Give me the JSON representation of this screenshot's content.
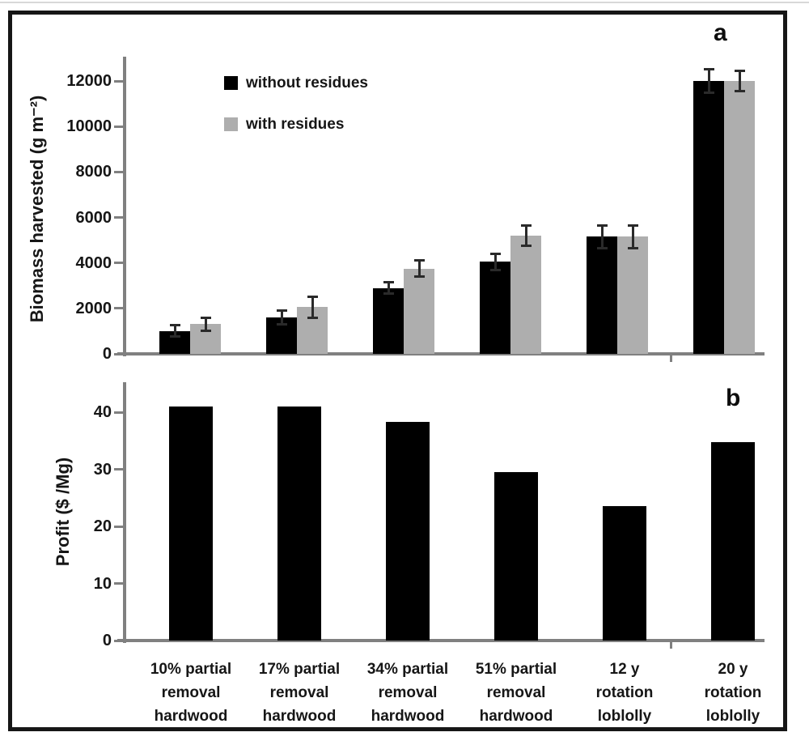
{
  "chart_data": [
    {
      "type": "bar",
      "panel_label": "a",
      "ylabel": "Biomass harvested (g m⁻²)",
      "ylim": [
        0,
        13100
      ],
      "yticks": [
        0,
        2000,
        4000,
        6000,
        8000,
        10000,
        12000
      ],
      "grid": false,
      "legend_position": "top-left-inside",
      "categories": [
        "10% partial removal hardwood",
        "17% partial removal hardwood",
        "34% partial removal hardwood",
        "51% partial removal hardwood",
        "12 y rotation loblolly",
        "20 y rotation loblolly"
      ],
      "series": [
        {
          "name": "without residues",
          "color": "#000000",
          "values": [
            1000,
            1600,
            2900,
            4050,
            5150,
            12000
          ],
          "errors": [
            250,
            300,
            250,
            350,
            500,
            500
          ]
        },
        {
          "name": "with residues",
          "color": "#aeaeae",
          "values": [
            1300,
            2050,
            3750,
            5200,
            5150,
            12000
          ],
          "errors": [
            300,
            450,
            350,
            450,
            500,
            450
          ]
        }
      ],
      "legend": {
        "items": [
          {
            "label": "without residues",
            "color": "#000000"
          },
          {
            "label": "with residues",
            "color": "#aeaeae"
          }
        ]
      }
    },
    {
      "type": "bar",
      "panel_label": "b",
      "ylabel": "Profit ($ /Mg)",
      "ylim": [
        0,
        45
      ],
      "yticks": [
        0,
        10,
        20,
        30,
        40
      ],
      "grid": false,
      "categories": [
        "10% partial removal hardwood",
        "17% partial removal hardwood",
        "34% partial removal hardwood",
        "51% partial removal hardwood",
        "12 y rotation loblolly",
        "20 y rotation loblolly"
      ],
      "series": [
        {
          "name": "Profit",
          "color": "#000000",
          "values": [
            41,
            41,
            38.3,
            29.5,
            23.5,
            34.8
          ]
        }
      ]
    }
  ],
  "x_axis": {
    "category_lines": [
      [
        "10% partial",
        "removal",
        "hardwood"
      ],
      [
        "17% partial",
        "removal",
        "hardwood"
      ],
      [
        "34% partial",
        "removal",
        "hardwood"
      ],
      [
        "51% partial",
        "removal",
        "hardwood"
      ],
      [
        "12 y",
        "rotation",
        "loblolly"
      ],
      [
        "20 y",
        "rotation",
        "loblolly"
      ]
    ]
  },
  "colors": {
    "axis": "#808080",
    "bar_black": "#000000",
    "bar_gray": "#aeaeae",
    "frame": "#161616"
  }
}
